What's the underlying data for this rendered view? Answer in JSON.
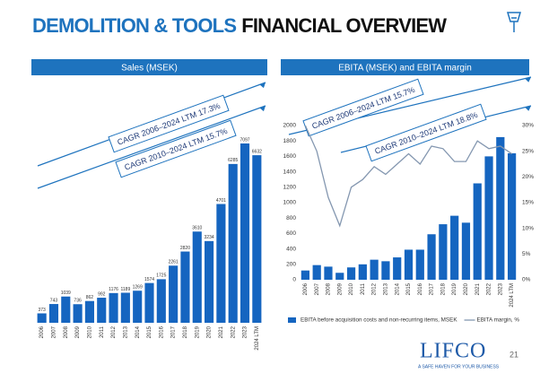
{
  "header": {
    "title_highlight": "DEMOLITION & TOOLS",
    "title_rest": "FINANCIAL OVERVIEW"
  },
  "chart_data": [
    {
      "type": "bar",
      "title": "Sales (MSEK)",
      "annotations": [
        "CAGR 2006–2024 LTM 17.3%",
        "CAGR 2010–2024 LTM 15.7%"
      ],
      "categories": [
        "2006",
        "2007",
        "2008",
        "2009",
        "2010",
        "2011",
        "2012",
        "2013",
        "2014",
        "2015",
        "2016",
        "2017",
        "2018",
        "2019",
        "2020",
        "2021",
        "2022",
        "2023",
        "2024 LTM"
      ],
      "values": [
        373,
        743,
        1039,
        736,
        862,
        992,
        1176,
        1189,
        1269,
        1574,
        1725,
        2261,
        2820,
        3610,
        3234,
        4701,
        6285,
        7097,
        6632
      ],
      "color": "#1565c0"
    },
    {
      "type": "combo",
      "title": "EBITA (MSEK) and EBITA margin",
      "annotations": [
        "CAGR 2006–2024 LTM 15.7%",
        "CAGR 2010–2024 LTM 18.8%"
      ],
      "categories": [
        "2006",
        "2007",
        "2008",
        "2009",
        "2010",
        "2011",
        "2012",
        "2013",
        "2014",
        "2015",
        "2016",
        "2017",
        "2018",
        "2019",
        "2020",
        "2021",
        "2022",
        "2023",
        "2024 LTM"
      ],
      "series": [
        {
          "name": "EBITA before acquisition costs and non-recurring items, MSEK",
          "color": "#1565c0",
          "values": [
            120,
            190,
            170,
            90,
            160,
            200,
            260,
            240,
            290,
            390,
            390,
            590,
            720,
            830,
            740,
            1250,
            1600,
            1850,
            1640
          ]
        },
        {
          "name": "EBITA margin, %",
          "color": "#8497b0",
          "axis": "y2",
          "values": [
            30,
            25,
            16,
            10.5,
            18,
            19.5,
            22,
            20.5,
            22.5,
            24.5,
            22.5,
            26,
            25.5,
            23,
            23,
            27,
            25.5,
            26,
            24.5
          ]
        }
      ],
      "ylim": [
        0,
        2000
      ],
      "yticks": [
        0,
        200,
        400,
        600,
        800,
        1000,
        1200,
        1400,
        1600,
        1800,
        2000
      ],
      "y2lim": [
        0,
        30
      ],
      "y2ticks": [
        {
          "value": 0,
          "label": "0%"
        },
        {
          "value": 5,
          "label": "5%"
        },
        {
          "value": 10,
          "label": "10%"
        },
        {
          "value": 15,
          "label": "15%"
        },
        {
          "value": 20,
          "label": "20%"
        },
        {
          "value": 25,
          "label": "25%"
        },
        {
          "value": 30,
          "label": "30%"
        }
      ],
      "legend": "bottom"
    }
  ],
  "footer": {
    "logo": "LIFCO",
    "tagline": "A SAFE HAVEN FOR YOUR BUSINESS",
    "page": "21"
  }
}
